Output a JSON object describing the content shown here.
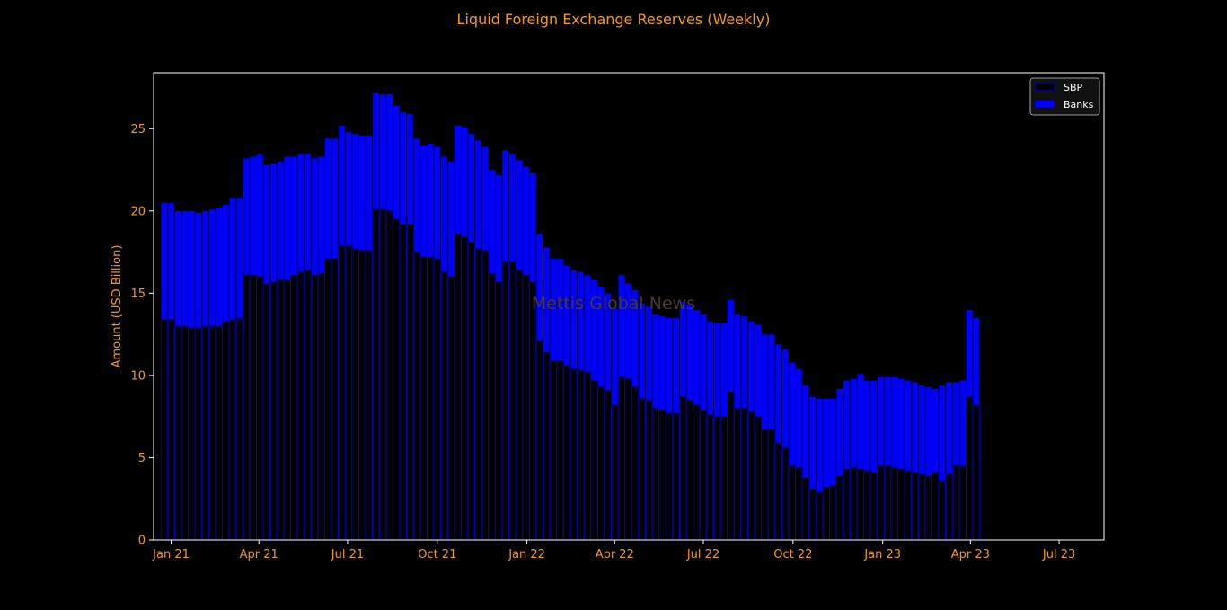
{
  "colors": {
    "background": "#000000",
    "text": "#f39c12",
    "frame": "#ffffff",
    "sbp_fill": "#000000",
    "sbp_edge": "#0000c8",
    "banks_fill": "#0000ff",
    "banks_edge": "#000033",
    "watermark": "#4a3a2a"
  },
  "watermark": "Mettis Global News",
  "chart_data": {
    "type": "bar",
    "stacked": true,
    "title": "Liquid Foreign Exchange Reserves (Weekly)",
    "xlabel": "",
    "ylabel": "Amount (USD Billion)",
    "ylim": [
      0,
      28.4
    ],
    "yticks": [
      0,
      5,
      10,
      15,
      20,
      25
    ],
    "xlim": [
      "2020-12-14",
      "2023-08-16"
    ],
    "xticks": [
      {
        "label": "Jan 21",
        "date": "2021-01-01"
      },
      {
        "label": "Apr 21",
        "date": "2021-04-01"
      },
      {
        "label": "Jul 21",
        "date": "2021-07-01"
      },
      {
        "label": "Oct 21",
        "date": "2021-10-01"
      },
      {
        "label": "Jan 22",
        "date": "2022-01-01"
      },
      {
        "label": "Apr 22",
        "date": "2022-04-01"
      },
      {
        "label": "Jul 22",
        "date": "2022-07-01"
      },
      {
        "label": "Oct 22",
        "date": "2022-10-01"
      },
      {
        "label": "Jan 23",
        "date": "2023-01-01"
      },
      {
        "label": "Apr 23",
        "date": "2023-04-01"
      },
      {
        "label": "Jul 23",
        "date": "2023-07-01"
      }
    ],
    "x_start": "2020-12-25",
    "x_step_days": 7,
    "grid": false,
    "legend": "top-right",
    "series": [
      {
        "name": "SBP",
        "values": [
          13.4,
          13.4,
          13.0,
          13.0,
          12.9,
          12.9,
          13.0,
          13.0,
          13.0,
          13.3,
          13.4,
          13.5,
          16.1,
          16.1,
          16.0,
          15.6,
          15.7,
          15.8,
          15.8,
          16.1,
          16.3,
          16.4,
          16.1,
          16.2,
          17.1,
          17.1,
          17.9,
          17.9,
          17.7,
          17.6,
          17.6,
          20.1,
          20.1,
          20.0,
          19.5,
          19.2,
          19.2,
          17.5,
          17.2,
          17.2,
          17.1,
          16.3,
          16.0,
          18.6,
          18.4,
          18.1,
          17.7,
          17.6,
          16.2,
          15.7,
          16.9,
          16.9,
          16.4,
          16.1,
          15.7,
          12.1,
          11.4,
          10.9,
          10.9,
          10.6,
          10.4,
          10.3,
          10.2,
          9.7,
          9.3,
          9.1,
          8.2,
          9.9,
          9.8,
          9.3,
          8.6,
          8.5,
          8.0,
          7.9,
          7.7,
          7.7,
          8.7,
          8.5,
          8.2,
          7.9,
          7.6,
          7.5,
          7.5,
          9.0,
          8.0,
          8.0,
          7.8,
          7.5,
          6.7,
          6.7,
          5.9,
          5.6,
          4.5,
          4.4,
          3.8,
          3.1,
          2.9,
          3.2,
          3.3,
          3.9,
          4.3,
          4.4,
          4.3,
          4.2,
          4.1,
          4.5,
          4.5,
          4.4,
          4.3,
          4.2,
          4.1,
          4.0,
          3.9,
          4.1,
          3.6,
          4.0,
          4.5,
          4.5,
          8.7,
          8.2
        ],
        "banks": [
          7.1,
          7.1,
          7.0,
          7.0,
          7.1,
          7.0,
          7.0,
          7.1,
          7.2,
          7.1,
          7.4,
          7.3,
          7.1,
          7.2,
          7.5,
          7.2,
          7.2,
          7.2,
          7.5,
          7.2,
          7.2,
          7.1,
          7.1,
          7.1,
          7.3,
          7.3,
          7.3,
          6.9,
          7.0,
          7.0,
          7.0,
          7.1,
          7.0,
          7.1,
          6.9,
          6.8,
          6.7,
          6.9,
          6.8,
          6.9,
          6.8,
          7.0,
          7.0,
          6.6,
          6.7,
          6.6,
          6.6,
          6.3,
          6.3,
          6.5,
          6.8,
          6.6,
          6.7,
          6.6,
          6.6,
          6.5,
          6.4,
          6.2,
          6.2,
          6.1,
          6.0,
          6.0,
          5.9,
          6.1,
          6.1,
          5.9,
          5.9,
          6.2,
          5.8,
          5.9,
          5.8,
          5.7,
          5.7,
          5.7,
          5.8,
          5.8,
          5.8,
          5.8,
          5.8,
          5.8,
          5.7,
          5.7,
          5.7,
          5.6,
          5.7,
          5.6,
          5.5,
          5.6,
          5.8,
          5.8,
          6.0,
          6.0,
          6.3,
          6.0,
          5.6,
          5.6,
          5.7,
          5.4,
          5.3,
          5.3,
          5.4,
          5.4,
          5.8,
          5.5,
          5.6,
          5.4,
          5.4,
          5.5,
          5.5,
          5.5,
          5.5,
          5.4,
          5.4,
          5.1,
          5.8,
          5.6,
          5.1,
          5.2,
          5.3,
          5.3
        ]
      },
      {
        "name": "Banks"
      }
    ]
  }
}
